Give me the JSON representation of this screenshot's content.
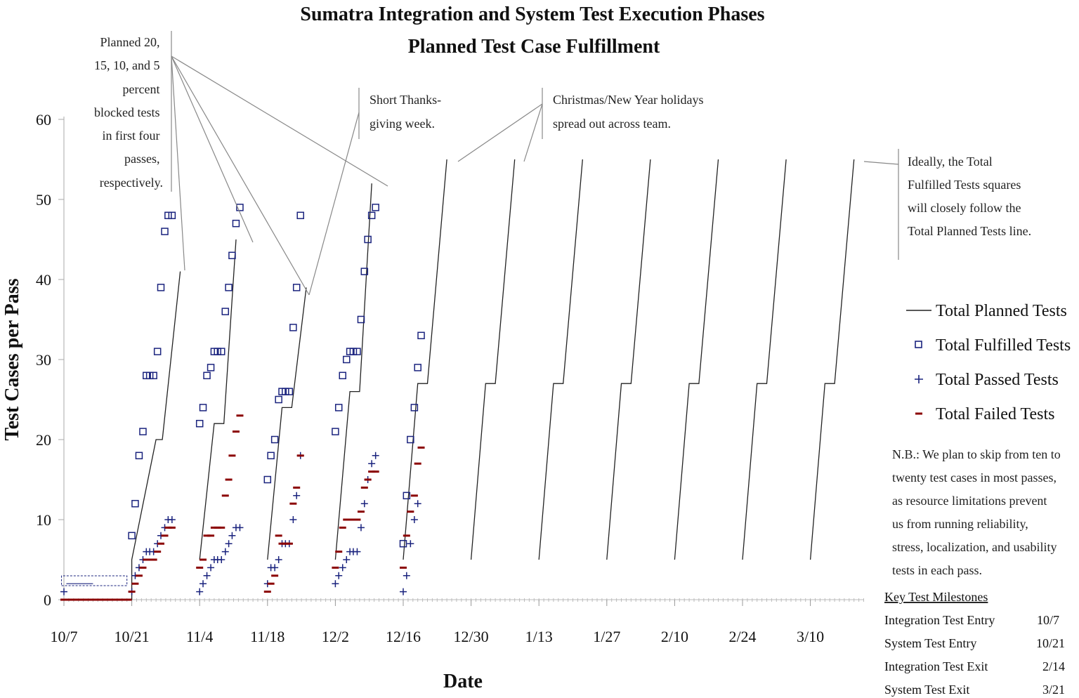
{
  "chart_data": {
    "type": "line",
    "title": "Sumatra Integration and System Test Execution Phases",
    "subtitle": "Planned Test Case Fulfillment",
    "xlabel": "Date",
    "ylabel": "Test Cases per Pass",
    "ylim": [
      0,
      60
    ],
    "yticks": [
      0,
      10,
      20,
      30,
      40,
      50,
      60
    ],
    "xticks": [
      "10/7",
      "10/21",
      "11/4",
      "11/18",
      "12/2",
      "12/16",
      "12/30",
      "1/13",
      "1/27",
      "2/10",
      "2/24",
      "3/10"
    ],
    "x_start_date": "10/7",
    "legend_position": "right",
    "series": [
      {
        "name": "Total Planned Tests",
        "style": "line",
        "color": "#222222",
        "passes": [
          [
            [
              14,
              0
            ],
            [
              14,
              5
            ],
            [
              19,
              20
            ],
            [
              20.3,
              20
            ],
            [
              24,
              41
            ]
          ],
          [
            [
              28,
              5
            ],
            [
              31,
              22
            ],
            [
              33,
              22
            ],
            [
              35.5,
              45
            ]
          ],
          [
            [
              42,
              5
            ],
            [
              45,
              24
            ],
            [
              47,
              24
            ],
            [
              50,
              39
            ]
          ],
          [
            [
              56,
              5
            ],
            [
              59,
              26
            ],
            [
              61,
              26
            ],
            [
              63.5,
              52
            ]
          ],
          [
            [
              70,
              5
            ],
            [
              73,
              27
            ],
            [
              75,
              27
            ],
            [
              79,
              55
            ]
          ],
          [
            [
              84,
              5
            ],
            [
              87,
              27
            ],
            [
              89,
              27
            ],
            [
              93,
              55
            ]
          ],
          [
            [
              98,
              5
            ],
            [
              101,
              27
            ],
            [
              103,
              27
            ],
            [
              107,
              55
            ]
          ],
          [
            [
              112,
              5
            ],
            [
              115,
              27
            ],
            [
              117,
              27
            ],
            [
              121,
              55
            ]
          ],
          [
            [
              126,
              5
            ],
            [
              129,
              27
            ],
            [
              131,
              27
            ],
            [
              135,
              55
            ]
          ],
          [
            [
              140,
              5
            ],
            [
              143,
              27
            ],
            [
              145,
              27
            ],
            [
              149,
              55
            ]
          ],
          [
            [
              154,
              5
            ],
            [
              157,
              27
            ],
            [
              159,
              27
            ],
            [
              163,
              55
            ]
          ]
        ]
      },
      {
        "name": "Total Fulfilled Tests",
        "style": "square",
        "color": "#1a237e",
        "points": [
          [
            14,
            8
          ],
          [
            14.7,
            12
          ],
          [
            15.5,
            18
          ],
          [
            16.3,
            21
          ],
          [
            17,
            28
          ],
          [
            17.7,
            28
          ],
          [
            18.5,
            28
          ],
          [
            19.3,
            31
          ],
          [
            20,
            39
          ],
          [
            20.8,
            46
          ],
          [
            21.5,
            48
          ],
          [
            22.3,
            48
          ],
          [
            28,
            22
          ],
          [
            28.7,
            24
          ],
          [
            29.5,
            28
          ],
          [
            30.3,
            29
          ],
          [
            31,
            31
          ],
          [
            31.7,
            31
          ],
          [
            32.5,
            31
          ],
          [
            33.3,
            36
          ],
          [
            34,
            39
          ],
          [
            34.7,
            43
          ],
          [
            35.5,
            47
          ],
          [
            36.3,
            49
          ],
          [
            42,
            15
          ],
          [
            42.7,
            18
          ],
          [
            43.5,
            20
          ],
          [
            44.3,
            25
          ],
          [
            45,
            26
          ],
          [
            45.7,
            26
          ],
          [
            46.5,
            26
          ],
          [
            47.3,
            34
          ],
          [
            48,
            39
          ],
          [
            48.8,
            48
          ],
          [
            56,
            21
          ],
          [
            56.7,
            24
          ],
          [
            57.5,
            28
          ],
          [
            58.3,
            30
          ],
          [
            59,
            31
          ],
          [
            59.7,
            31
          ],
          [
            60.5,
            31
          ],
          [
            61.3,
            35
          ],
          [
            62,
            41
          ],
          [
            62.7,
            45
          ],
          [
            63.5,
            48
          ],
          [
            64.3,
            49
          ],
          [
            70,
            7
          ],
          [
            70.7,
            13
          ],
          [
            71.5,
            20
          ],
          [
            72.3,
            24
          ],
          [
            73,
            29
          ],
          [
            73.7,
            33
          ]
        ]
      },
      {
        "name": "Total Passed Tests",
        "style": "plus",
        "color": "#1a237e",
        "points": [
          [
            0,
            1
          ],
          [
            14,
            1
          ],
          [
            14.7,
            3
          ],
          [
            15.5,
            4
          ],
          [
            16.3,
            5
          ],
          [
            17,
            6
          ],
          [
            17.7,
            6
          ],
          [
            18.5,
            6
          ],
          [
            19.3,
            7
          ],
          [
            20,
            8
          ],
          [
            20.8,
            9
          ],
          [
            21.5,
            10
          ],
          [
            22.3,
            10
          ],
          [
            28,
            1
          ],
          [
            28.7,
            2
          ],
          [
            29.5,
            3
          ],
          [
            30.3,
            4
          ],
          [
            31,
            5
          ],
          [
            31.7,
            5
          ],
          [
            32.5,
            5
          ],
          [
            33.3,
            6
          ],
          [
            34,
            7
          ],
          [
            34.7,
            8
          ],
          [
            35.5,
            9
          ],
          [
            36.3,
            9
          ],
          [
            42,
            2
          ],
          [
            42.7,
            4
          ],
          [
            43.5,
            4
          ],
          [
            44.3,
            5
          ],
          [
            45,
            7
          ],
          [
            45.7,
            7
          ],
          [
            46.5,
            7
          ],
          [
            47.3,
            10
          ],
          [
            48,
            13
          ],
          [
            48.8,
            18
          ],
          [
            56,
            2
          ],
          [
            56.7,
            3
          ],
          [
            57.5,
            4
          ],
          [
            58.3,
            5
          ],
          [
            59,
            6
          ],
          [
            59.7,
            6
          ],
          [
            60.5,
            6
          ],
          [
            61.3,
            9
          ],
          [
            62,
            12
          ],
          [
            62.7,
            15
          ],
          [
            63.5,
            17
          ],
          [
            64.3,
            18
          ],
          [
            70,
            1
          ],
          [
            70.7,
            3
          ],
          [
            71.5,
            7
          ],
          [
            72.3,
            10
          ],
          [
            73,
            12
          ]
        ]
      },
      {
        "name": "Total Failed Tests",
        "style": "dash",
        "color": "#8b0000",
        "points": [
          [
            0,
            0
          ],
          [
            2,
            0
          ],
          [
            4,
            0
          ],
          [
            6,
            0
          ],
          [
            8,
            0
          ],
          [
            10,
            0
          ],
          [
            12,
            0
          ],
          [
            14,
            1
          ],
          [
            14.7,
            2
          ],
          [
            15.5,
            3
          ],
          [
            16.3,
            4
          ],
          [
            17,
            5
          ],
          [
            17.7,
            5
          ],
          [
            18.5,
            5
          ],
          [
            19.3,
            6
          ],
          [
            20,
            7
          ],
          [
            20.8,
            8
          ],
          [
            21.5,
            9
          ],
          [
            22.3,
            9
          ],
          [
            28,
            4
          ],
          [
            28.7,
            5
          ],
          [
            29.5,
            8
          ],
          [
            30.3,
            8
          ],
          [
            31,
            9
          ],
          [
            31.7,
            9
          ],
          [
            32.5,
            9
          ],
          [
            33.3,
            13
          ],
          [
            34,
            15
          ],
          [
            34.7,
            18
          ],
          [
            35.5,
            21
          ],
          [
            36.3,
            23
          ],
          [
            42,
            1
          ],
          [
            42.7,
            2
          ],
          [
            43.5,
            3
          ],
          [
            44.3,
            8
          ],
          [
            45,
            7
          ],
          [
            45.7,
            7
          ],
          [
            46.5,
            7
          ],
          [
            47.3,
            12
          ],
          [
            48,
            14
          ],
          [
            48.8,
            18
          ],
          [
            56,
            4
          ],
          [
            56.7,
            6
          ],
          [
            57.5,
            9
          ],
          [
            58.3,
            10
          ],
          [
            59,
            10
          ],
          [
            59.7,
            10
          ],
          [
            60.5,
            10
          ],
          [
            61.3,
            11
          ],
          [
            62,
            14
          ],
          [
            62.7,
            15
          ],
          [
            63.5,
            16
          ],
          [
            64.3,
            16
          ],
          [
            70,
            4
          ],
          [
            70.7,
            8
          ],
          [
            71.5,
            11
          ],
          [
            72.3,
            13
          ],
          [
            73,
            17
          ],
          [
            73.7,
            19
          ]
        ]
      }
    ],
    "annotations": [
      "Planned 20, 15, 10, and 5 percent blocked tests in first four passes, respectively.",
      "Short Thanksgiving week.",
      "Christmas/New Year holidays spread out across team.",
      "Ideally, the Total Fulfilled Tests squares will closely follow the Total Planned Tests line.",
      "N.B.: We plan to skip from ten to twenty test cases in most passes, as resource limitations prevent us from running reliability, stress, localization, and usability tests in each pass."
    ],
    "milestones": {
      "heading": "Key Test Milestones",
      "rows": [
        {
          "label": "Integration Test Entry",
          "date": "10/7"
        },
        {
          "label": "System Test Entry",
          "date": "10/21"
        },
        {
          "label": "Integration Test Exit",
          "date": "2/14"
        },
        {
          "label": "System Test Exit",
          "date": "3/21"
        }
      ]
    }
  }
}
